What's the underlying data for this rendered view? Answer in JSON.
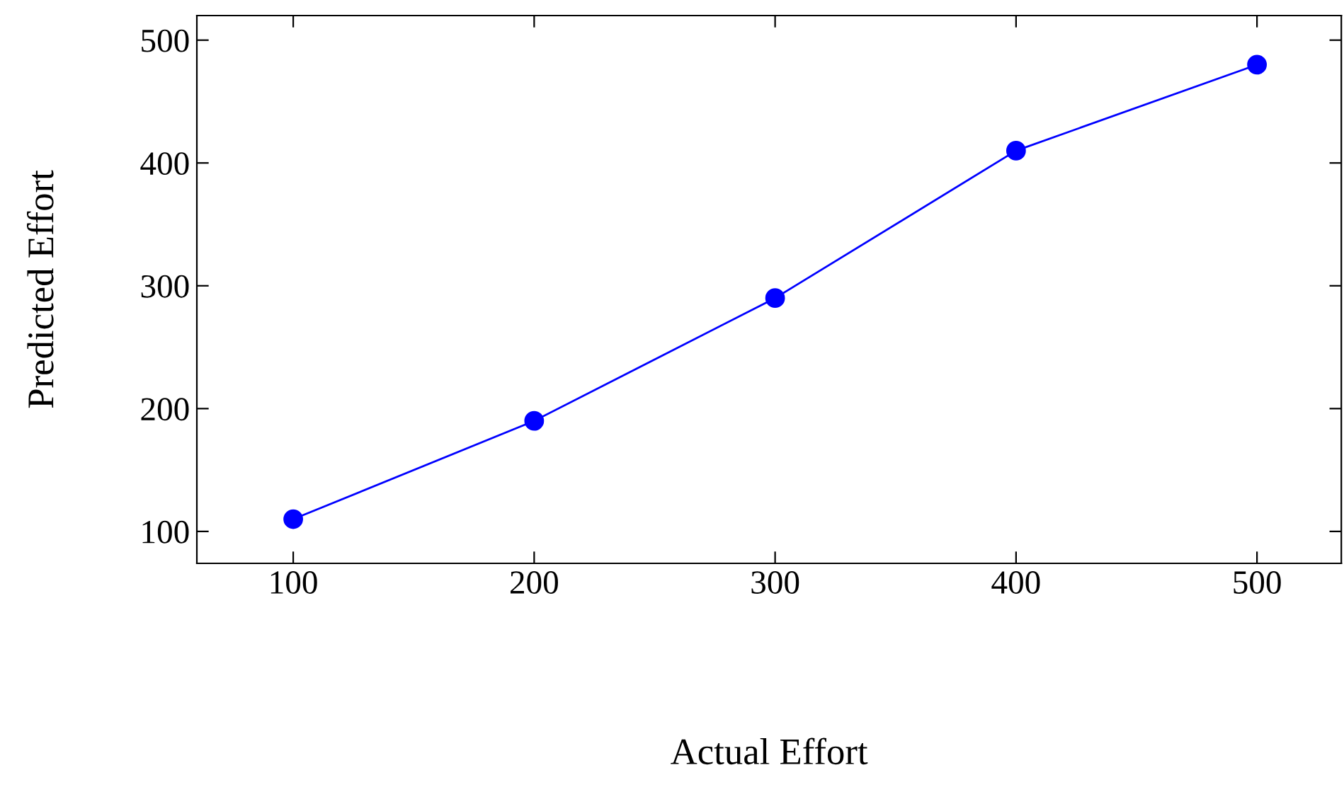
{
  "chart_data": {
    "type": "line",
    "xlabel": "Actual Effort",
    "ylabel": "Predicted Effort",
    "x": [
      100,
      200,
      300,
      400,
      500
    ],
    "series": [
      {
        "color": "#0000ff",
        "values": [
          110,
          190,
          290,
          410,
          480
        ]
      }
    ],
    "marker": "circle",
    "line_style": "solid",
    "xlim": [
      60,
      535
    ],
    "ylim": [
      74,
      520
    ],
    "xticks": [
      100,
      200,
      300,
      400,
      500
    ],
    "yticks": [
      100,
      200,
      300,
      400,
      500
    ],
    "grid": false,
    "legend": false
  }
}
